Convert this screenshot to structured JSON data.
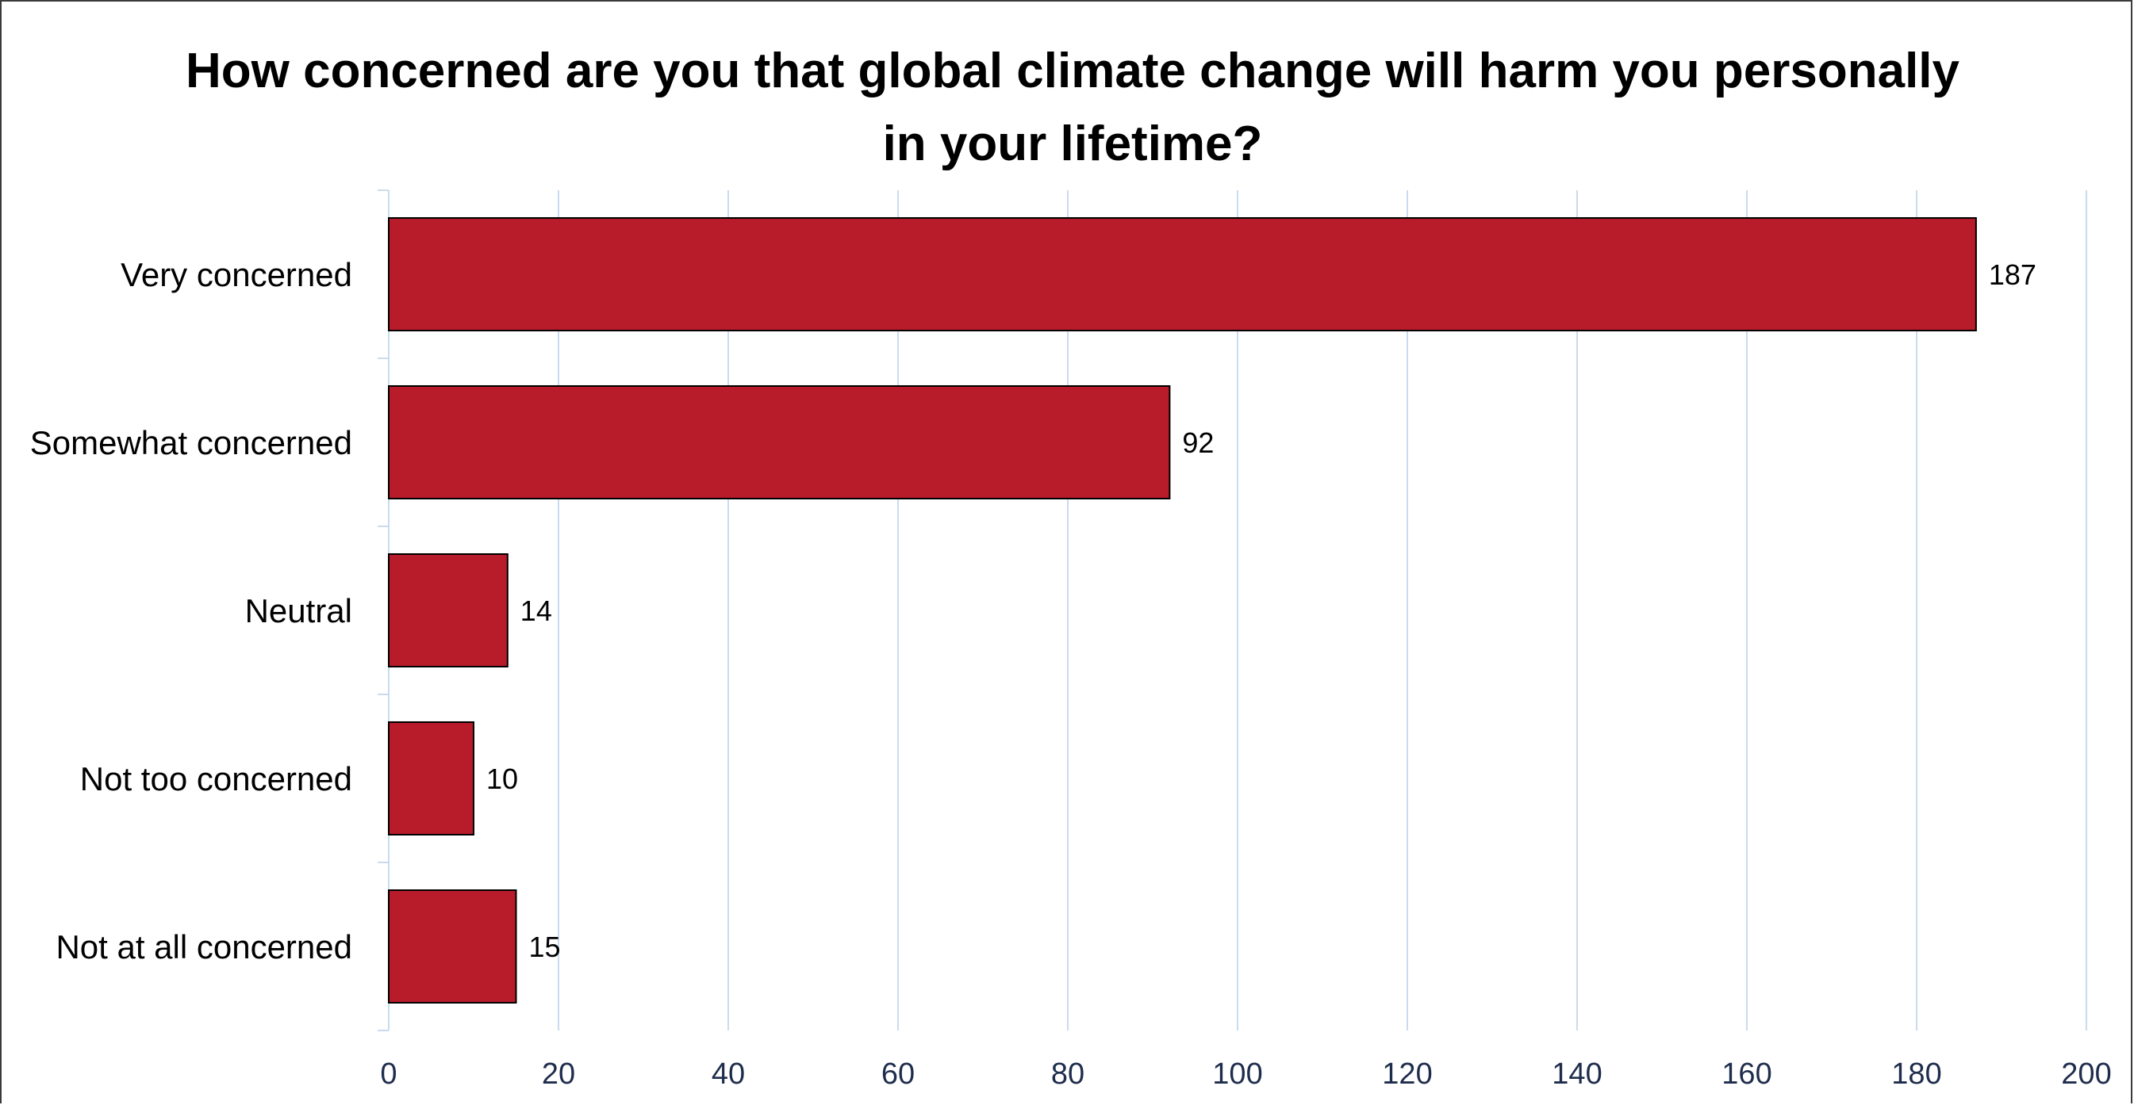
{
  "chart_data": {
    "type": "bar",
    "orientation": "horizontal",
    "title": "How concerned are you that global climate change will harm you personally in your lifetime?",
    "categories": [
      "Very concerned",
      "Somewhat concerned",
      "Neutral",
      "Not too concerned",
      "Not at all concerned"
    ],
    "values": [
      187,
      92,
      14,
      10,
      15
    ],
    "data_labels": [
      "187",
      "92",
      "14",
      "10",
      "15"
    ],
    "xlim": [
      0,
      200
    ],
    "x_ticks": [
      0,
      20,
      40,
      60,
      80,
      100,
      120,
      140,
      160,
      180,
      200
    ],
    "x_tick_labels": [
      "0",
      "20",
      "40",
      "60",
      "80",
      "100",
      "120",
      "140",
      "160",
      "180",
      "200"
    ],
    "xlabel": "",
    "ylabel": "",
    "grid": "vertical",
    "legend": "none",
    "bar_color": "#b81b29",
    "bar_edge_color": "#000000",
    "grid_color": "#c9dcef",
    "tick_label_color": "#1f2d4d"
  }
}
